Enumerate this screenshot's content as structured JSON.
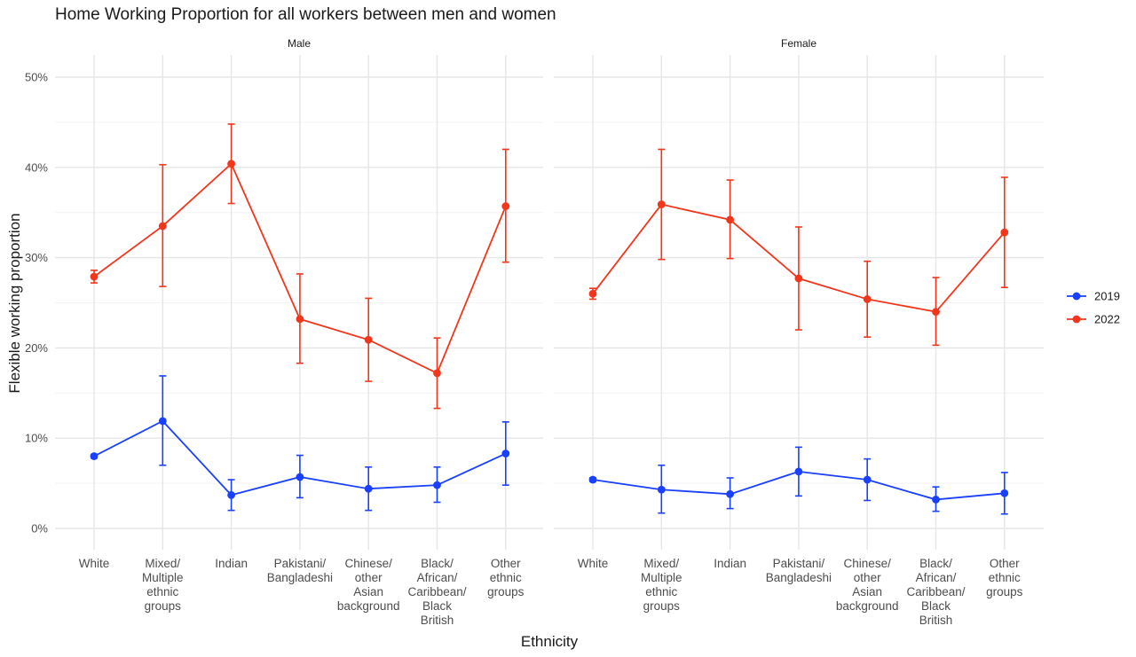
{
  "chart_data": {
    "type": "line",
    "title": "Home Working Proportion for all workers between men and women",
    "xlabel": "Ethnicity",
    "ylabel": "Flexible working proportion",
    "ylim": [
      0,
      0.5
    ],
    "y_ticks": [
      "0%",
      "10%",
      "20%",
      "30%",
      "40%",
      "50%"
    ],
    "grid": true,
    "legend_position": "right",
    "categories": [
      "White",
      "Mixed/ Multiple ethnic groups",
      "Indian",
      "Pakistani/ Bangladeshi",
      "Chinese/ other Asian background",
      "Black/ African/ Caribbean/ Black British",
      "Other ethnic groups"
    ],
    "category_lines": [
      [
        "White"
      ],
      [
        "Mixed/",
        "Multiple",
        "ethnic",
        "groups"
      ],
      [
        "Indian"
      ],
      [
        "Pakistani/",
        "Bangladeshi"
      ],
      [
        "Chinese/",
        "other",
        "Asian",
        "background"
      ],
      [
        "Black/",
        "African/",
        "Caribbean/",
        "Black",
        "British"
      ],
      [
        "Other",
        "ethnic",
        "groups"
      ]
    ],
    "panels": [
      {
        "name": "Male",
        "series": [
          {
            "name": "2019",
            "color": "#1a40ff",
            "values": [
              0.08,
              0.119,
              0.037,
              0.057,
              0.044,
              0.048,
              0.083
            ],
            "lower": [
              0.078,
              0.07,
              0.02,
              0.034,
              0.02,
              0.029,
              0.048
            ],
            "upper": [
              0.082,
              0.169,
              0.054,
              0.081,
              0.068,
              0.068,
              0.118
            ]
          },
          {
            "name": "2022",
            "color": "#f2361c",
            "values": [
              0.279,
              0.335,
              0.404,
              0.232,
              0.209,
              0.172,
              0.357
            ],
            "lower": [
              0.272,
              0.268,
              0.36,
              0.183,
              0.163,
              0.133,
              0.295
            ],
            "upper": [
              0.286,
              0.403,
              0.448,
              0.282,
              0.255,
              0.211,
              0.42
            ]
          }
        ]
      },
      {
        "name": "Female",
        "series": [
          {
            "name": "2019",
            "color": "#1a40ff",
            "values": [
              0.054,
              0.043,
              0.038,
              0.063,
              0.054,
              0.032,
              0.039
            ],
            "lower": [
              0.052,
              0.017,
              0.022,
              0.036,
              0.031,
              0.019,
              0.016
            ],
            "upper": [
              0.056,
              0.07,
              0.056,
              0.09,
              0.077,
              0.046,
              0.062
            ]
          },
          {
            "name": "2022",
            "color": "#f2361c",
            "values": [
              0.26,
              0.359,
              0.342,
              0.277,
              0.254,
              0.24,
              0.328
            ],
            "lower": [
              0.254,
              0.298,
              0.299,
              0.22,
              0.212,
              0.203,
              0.267
            ],
            "upper": [
              0.266,
              0.42,
              0.386,
              0.334,
              0.296,
              0.278,
              0.389
            ]
          }
        ]
      }
    ],
    "legend": [
      {
        "label": "2019",
        "color": "#1a40ff"
      },
      {
        "label": "2022",
        "color": "#f2361c"
      }
    ]
  }
}
